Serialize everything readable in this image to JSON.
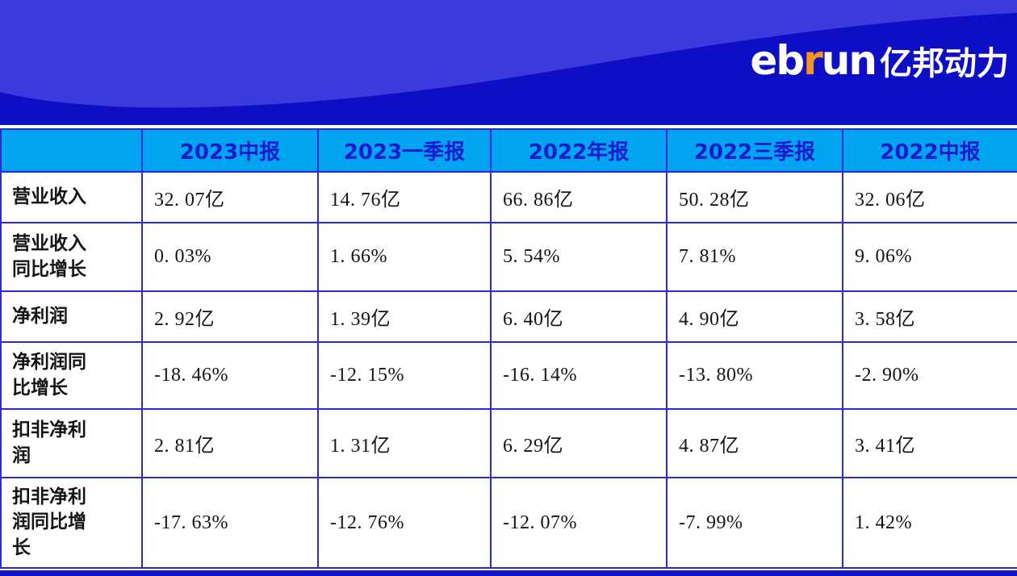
{
  "banner": {
    "logo": {
      "part1": "eb",
      "accent": "r",
      "part2": "un",
      "cn": "亿邦动力"
    },
    "colors": {
      "dark_blue": "#0e0fc4",
      "light_blue": "#3b3bdd",
      "accent_orange": "#f7941e"
    }
  },
  "chart_data": {
    "type": "table",
    "title": "",
    "columns": [
      "",
      "2023中报",
      "2023一季报",
      "2022年报",
      "2022三季报",
      "2022中报"
    ],
    "rows": [
      {
        "label": "营业收入",
        "values": [
          "32. 07亿",
          "14. 76亿",
          "66. 86亿",
          "50. 28亿",
          "32. 06亿"
        ]
      },
      {
        "label": "营业收入同比增长",
        "values": [
          "0. 03%",
          "1. 66%",
          "5. 54%",
          "7. 81%",
          "9. 06%"
        ]
      },
      {
        "label": "净利润",
        "values": [
          "2. 92亿",
          "1. 39亿",
          "6. 40亿",
          "4. 90亿",
          "3. 58亿"
        ]
      },
      {
        "label": "净利润同比增长",
        "values": [
          "-18. 46%",
          "-12. 15%",
          "-16. 14%",
          "-13. 80%",
          "-2. 90%"
        ]
      },
      {
        "label": "扣非净利润",
        "values": [
          "2. 81亿",
          "1. 31亿",
          "6. 29亿",
          "4. 87亿",
          "3. 41亿"
        ]
      },
      {
        "label": "扣非净利润同比增长",
        "values": [
          "-17. 63%",
          "-12. 76%",
          "-12. 07%",
          "-7. 99%",
          "1. 42%"
        ]
      }
    ]
  },
  "colors": {
    "header_bg": "#00a4f0",
    "header_text": "#1b1bcd",
    "grid_border": "#2b2bd2",
    "bottom_bar": "#1111c6"
  }
}
